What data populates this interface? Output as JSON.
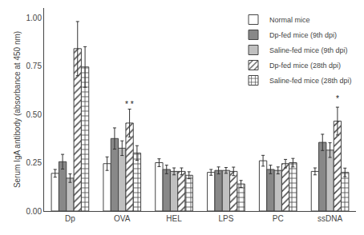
{
  "chart_data": {
    "type": "bar",
    "categories": [
      "Dp",
      "OVA",
      "HEL",
      "LPS",
      "PC",
      "ssDNA"
    ],
    "series": [
      {
        "name": "Normal mice",
        "color": "#ffffff",
        "values": [
          0.195,
          0.245,
          0.25,
          0.2,
          0.26,
          0.205
        ],
        "errors": [
          0.02,
          0.035,
          0.02,
          0.015,
          0.028,
          0.018
        ]
      },
      {
        "name": "Dp-fed mice (9th dpi)",
        "color": "#888888",
        "values": [
          0.255,
          0.375,
          0.215,
          0.21,
          0.215,
          0.355
        ],
        "errors": [
          0.038,
          0.055,
          0.022,
          0.018,
          0.022,
          0.042
        ]
      },
      {
        "name": "Saline-fed mice (9th dpi)",
        "color": "#c0c0c0",
        "values": [
          0.17,
          0.325,
          0.205,
          0.21,
          0.21,
          0.315
        ],
        "errors": [
          0.022,
          0.038,
          0.018,
          0.015,
          0.018,
          0.038
        ]
      },
      {
        "name": "Dp-fed mice (28th dpi)",
        "color": "#ffffff",
        "marker": "diagonal",
        "values": [
          0.84,
          0.455,
          0.205,
          0.205,
          0.245,
          0.465
        ],
        "errors": [
          0.14,
          0.072,
          0.018,
          0.022,
          0.022,
          0.072
        ]
      },
      {
        "name": "Saline-fed mice (28th dpi)",
        "color": "#ffffff",
        "marker": "cross",
        "values": [
          0.745,
          0.3,
          0.185,
          0.14,
          0.25,
          0.2
        ],
        "errors": [
          0.105,
          0.038,
          0.018,
          0.018,
          0.022,
          0.022
        ]
      }
    ],
    "ylabel": "Serum IgA antibody (absorbance at 450 nm)",
    "ylim": [
      0.0,
      1.05
    ],
    "yticks": [
      {
        "value": 0.0,
        "label": "0.00"
      },
      0.25,
      {
        "value": 0.5,
        "label": "0.50"
      },
      0.75,
      {
        "value": 1.0,
        "label": "1.00"
      }
    ],
    "annotations": [
      {
        "text": "* *",
        "category": "OVA",
        "series": "Dp-fed mice (28th dpi)",
        "y": 0.52
      },
      {
        "text": "*",
        "category": "ssDNA",
        "series": "Dp-fed mice (28th dpi)",
        "y": 0.548
      }
    ],
    "legend": "upper right",
    "grid": false
  }
}
